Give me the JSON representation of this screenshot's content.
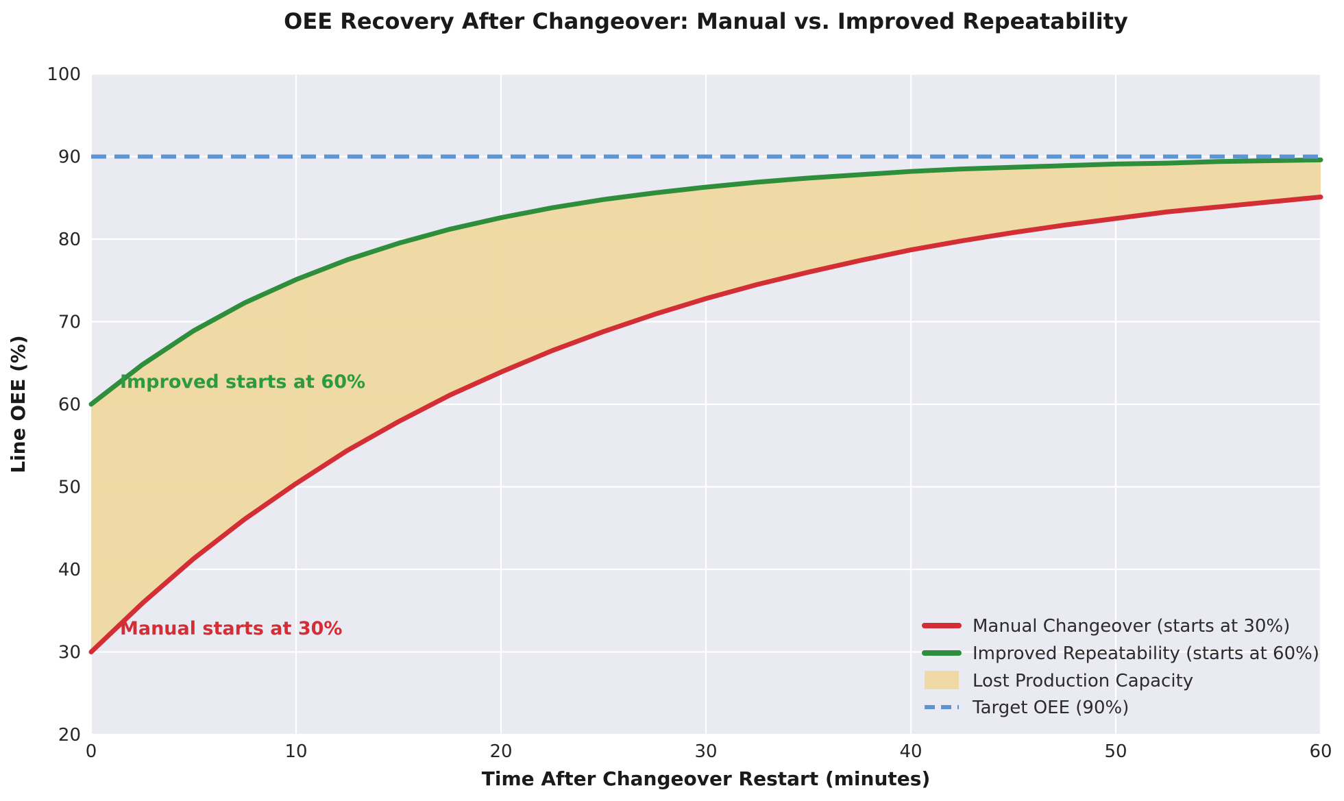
{
  "colors": {
    "manual_red": "#d32d35",
    "improved_green": "#2e8e3c",
    "fill_tan": "#efd79b",
    "target_blue": "#5b96d2",
    "plot_background": "#eaeaf2",
    "gridline": "#ffffff",
    "annotation_green": "#2c9a41",
    "annotation_red": "#d32d35"
  },
  "chart_data": {
    "type": "line",
    "title": "OEE Recovery After Changeover: Manual vs. Improved Repeatability",
    "xlabel": "Time After Changeover Restart (minutes)",
    "ylabel": "Line OEE (%)",
    "xlim": [
      0,
      60
    ],
    "ylim": [
      20,
      100
    ],
    "xticks": [
      0,
      10,
      20,
      30,
      40,
      50,
      60
    ],
    "yticks": [
      20,
      30,
      40,
      50,
      60,
      70,
      80,
      90,
      100
    ],
    "grid": true,
    "legend_position": "lower right",
    "x": [
      0,
      2.5,
      5,
      7.5,
      10,
      12.5,
      15,
      17.5,
      20,
      22.5,
      25,
      27.5,
      30,
      32.5,
      35,
      37.5,
      40,
      42.5,
      45,
      47.5,
      50,
      52.5,
      55,
      57.5,
      60
    ],
    "series": [
      {
        "name": "Manual Changeover (starts at 30%)",
        "color": "#d32d35",
        "values": [
          30.0,
          35.9,
          41.3,
          46.1,
          50.4,
          54.4,
          57.9,
          61.1,
          63.9,
          66.5,
          68.8,
          70.9,
          72.8,
          74.5,
          76.0,
          77.4,
          78.7,
          79.8,
          80.8,
          81.7,
          82.5,
          83.3,
          83.9,
          84.5,
          85.1
        ]
      },
      {
        "name": "Improved Repeatability (starts at 60%)",
        "color": "#2e8e3c",
        "values": [
          60.0,
          64.8,
          68.9,
          72.3,
          75.1,
          77.5,
          79.5,
          81.2,
          82.6,
          83.8,
          84.8,
          85.6,
          86.3,
          86.9,
          87.4,
          87.8,
          88.2,
          88.5,
          88.7,
          88.9,
          89.1,
          89.2,
          89.4,
          89.5,
          89.6
        ]
      }
    ],
    "fill_between": {
      "label": "Lost Production Capacity",
      "color": "#efd79b",
      "between": [
        "Improved Repeatability (starts at 60%)",
        "Manual Changeover (starts at 30%)"
      ]
    },
    "target_line": {
      "label": "Target OEE (90%)",
      "value": 90,
      "color": "#5b96d2",
      "style": "dashed"
    },
    "annotations": [
      {
        "text": "Improved starts at 60%",
        "x": 1.4,
        "y": 62.0,
        "color": "#2c9a41"
      },
      {
        "text": "Manual starts at 30%",
        "x": 1.4,
        "y": 32.1,
        "color": "#d32d35"
      }
    ]
  },
  "legend": {
    "items": [
      {
        "label": "Manual Changeover (starts at 30%)",
        "swatch": "line-red"
      },
      {
        "label": "Improved Repeatability (starts at 60%)",
        "swatch": "line-green"
      },
      {
        "label": "Lost Production Capacity",
        "swatch": "patch-tan"
      },
      {
        "label": "Target OEE (90%)",
        "swatch": "dashed-line-blue"
      }
    ]
  }
}
